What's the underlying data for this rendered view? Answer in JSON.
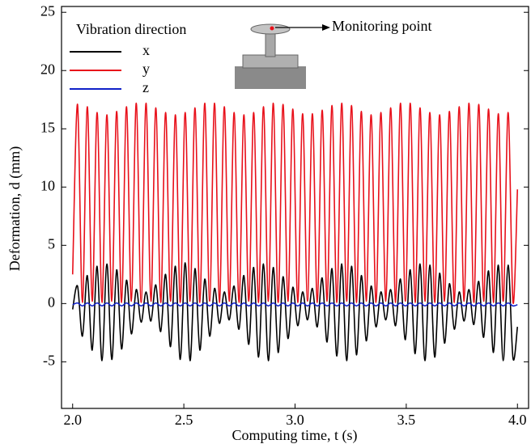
{
  "chart_data": {
    "type": "line",
    "xlabel": "Computing time, t (s)",
    "ylabel": "Deformation, d (mm)",
    "legend_title": "Vibration direction",
    "legend_position": "upper left",
    "annotation": "Monitoring point",
    "xlim": [
      1.95,
      4.05
    ],
    "ylim": [
      -9,
      25.5
    ],
    "xticks": [
      {
        "value": 2.0,
        "label": "2.0"
      },
      {
        "value": 2.5,
        "label": "2.5"
      },
      {
        "value": 3.0,
        "label": "3.0"
      },
      {
        "value": 3.5,
        "label": "3.5"
      },
      {
        "value": 4.0,
        "label": "4.0"
      }
    ],
    "yticks": [
      -5,
      0,
      5,
      10,
      15,
      20,
      25
    ],
    "x": [
      2,
      2.022,
      2.044,
      2.066,
      2.088,
      2.11,
      2.132,
      2.154,
      2.176,
      2.198,
      2.22,
      2.242,
      2.264,
      2.286,
      2.308,
      2.33,
      2.352,
      2.374,
      2.396,
      2.418,
      2.44,
      2.462,
      2.484,
      2.506,
      2.528,
      2.55,
      2.572,
      2.594,
      2.616,
      2.638,
      2.66,
      2.682,
      2.704,
      2.726,
      2.748,
      2.77,
      2.792,
      2.814,
      2.836,
      2.858,
      2.88,
      2.902,
      2.924,
      2.946,
      2.968,
      2.99,
      3.012,
      3.034,
      3.056,
      3.078,
      3.1,
      3.122,
      3.144,
      3.166,
      3.188,
      3.21,
      3.232,
      3.254,
      3.276,
      3.298,
      3.32,
      3.342,
      3.364,
      3.386,
      3.408,
      3.43,
      3.452,
      3.474,
      3.496,
      3.518,
      3.54,
      3.562,
      3.584,
      3.606,
      3.628,
      3.65,
      3.672,
      3.694,
      3.716,
      3.738,
      3.76,
      3.782,
      3.804,
      3.826,
      3.848,
      3.87,
      3.892,
      3.914,
      3.936,
      3.958,
      3.98,
      4.0
    ],
    "series": [
      {
        "name": "x",
        "color": "#000000",
        "values": [
          -0.5,
          1.5,
          -2.8,
          2.4,
          -4.0,
          3.2,
          -4.9,
          3.4,
          -4.8,
          2.9,
          -3.9,
          2.0,
          -2.6,
          1.2,
          -1.6,
          1.0,
          -1.5,
          1.6,
          -2.4,
          2.5,
          -3.7,
          3.2,
          -4.8,
          3.5,
          -4.9,
          3.0,
          -4.0,
          2.1,
          -2.8,
          1.3,
          -1.7,
          1.0,
          -1.4,
          1.5,
          -2.2,
          2.4,
          -3.5,
          3.1,
          -4.6,
          3.4,
          -4.9,
          3.1,
          -4.2,
          2.3,
          -3.0,
          1.4,
          -1.9,
          1.0,
          -1.4,
          1.3,
          -2.0,
          2.2,
          -3.3,
          3.0,
          -4.5,
          3.4,
          -4.9,
          3.2,
          -4.4,
          2.4,
          -3.2,
          1.5,
          -2.0,
          1.0,
          -1.4,
          1.2,
          -1.9,
          2.1,
          -3.1,
          2.9,
          -4.3,
          3.4,
          -4.9,
          3.3,
          -4.6,
          2.6,
          -3.4,
          1.7,
          -2.2,
          1.0,
          -1.5,
          1.2,
          -1.8,
          1.9,
          -2.9,
          2.8,
          -4.2,
          3.3,
          -4.9,
          3.3,
          -4.7,
          -2.0
        ]
      },
      {
        "name": "y",
        "color": "#e8101a",
        "values": [
          2.5,
          17.1,
          0.1,
          16.9,
          0.2,
          16.4,
          0.1,
          16.2,
          0.2,
          16.5,
          0.1,
          16.9,
          0.2,
          17.2,
          0.1,
          17.2,
          0.2,
          16.8,
          0.1,
          16.4,
          0.2,
          16.2,
          0.1,
          16.4,
          0.2,
          16.8,
          0.1,
          17.2,
          0.2,
          17.2,
          0.1,
          16.9,
          0.2,
          16.4,
          0.1,
          16.2,
          0.2,
          16.4,
          0.1,
          16.9,
          0.2,
          17.2,
          0.1,
          17.1,
          0.2,
          16.7,
          0.1,
          16.3,
          0.2,
          16.3,
          0.1,
          16.6,
          0.2,
          17.0,
          0.1,
          17.2,
          0.2,
          17.0,
          0.1,
          16.5,
          0.2,
          16.2,
          0.1,
          16.4,
          0.2,
          16.8,
          0.1,
          17.2,
          0.2,
          17.2,
          0.1,
          16.8,
          0.2,
          16.4,
          0.1,
          16.2,
          0.2,
          16.5,
          0.1,
          16.9,
          0.2,
          17.2,
          0.1,
          17.1,
          0.2,
          16.7,
          0.1,
          16.3,
          0.2,
          16.4,
          0.1,
          9.8
        ]
      },
      {
        "name": "z",
        "color": "#1020c8",
        "values": [
          -0.1,
          0.05,
          -0.2,
          0.05,
          -0.2,
          0.05,
          -0.2,
          0.05,
          -0.2,
          0.05,
          -0.2,
          0.05,
          -0.2,
          0.05,
          -0.2,
          0.05,
          -0.2,
          0.05,
          -0.2,
          0.05,
          -0.2,
          0.05,
          -0.2,
          0.05,
          -0.2,
          0.05,
          -0.2,
          0.05,
          -0.2,
          0.05,
          -0.2,
          0.05,
          -0.2,
          0.05,
          -0.2,
          0.05,
          -0.2,
          0.05,
          -0.2,
          0.05,
          -0.2,
          0.05,
          -0.2,
          0.05,
          -0.2,
          0.05,
          -0.2,
          0.05,
          -0.2,
          0.05,
          -0.2,
          0.05,
          -0.2,
          0.05,
          -0.2,
          0.05,
          -0.2,
          0.05,
          -0.2,
          0.05,
          -0.2,
          0.05,
          -0.2,
          0.05,
          -0.2,
          0.05,
          -0.2,
          0.05,
          -0.2,
          0.05,
          -0.2,
          0.05,
          -0.2,
          0.05,
          -0.2,
          0.05,
          -0.2,
          0.05,
          -0.2,
          0.05,
          -0.2,
          0.05,
          -0.2,
          0.05,
          -0.2,
          0.05,
          -0.2,
          0.05,
          -0.2,
          0.05,
          -0.2,
          -0.1
        ]
      }
    ]
  }
}
